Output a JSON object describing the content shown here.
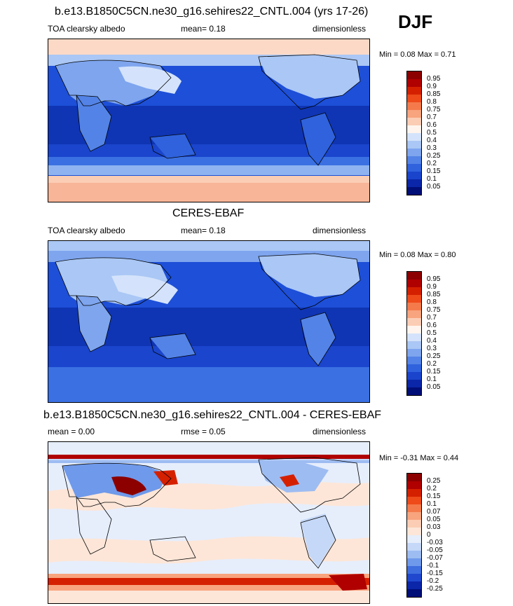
{
  "header": {
    "season": "DJF"
  },
  "panels": [
    {
      "title": "b.e13.B1850C5CN.ne30_g16.sehires22_CNTL.004 (yrs 17-26)",
      "left_label": "TOA clearsky albedo",
      "center_label": "mean=  0.18",
      "right_label": "dimensionless",
      "minmax": "Min =  0.08 Max =  0.71",
      "colorbar": {
        "labels": [
          "0.95",
          "0.9",
          "0.85",
          "0.8",
          "0.75",
          "0.7",
          "0.6",
          "0.5",
          "0.4",
          "0.3",
          "0.25",
          "0.2",
          "0.15",
          "0.1",
          "0.05"
        ],
        "colors": [
          "#8c0000",
          "#b00000",
          "#d52000",
          "#ee4a1a",
          "#f47a4c",
          "#f8a47e",
          "#fbcdb4",
          "#fff5ee",
          "#d4e3fb",
          "#aac7f5",
          "#7ea5ee",
          "#5383e6",
          "#2f62dc",
          "#1a44cc",
          "#0b26a8",
          "#000e78"
        ]
      }
    },
    {
      "title": "CERES-EBAF",
      "left_label": "TOA clearsky albedo",
      "center_label": "mean=  0.18",
      "right_label": "dimensionless",
      "minmax": "Min =  0.08 Max =  0.80",
      "colorbar": {
        "labels": [
          "0.95",
          "0.9",
          "0.85",
          "0.8",
          "0.75",
          "0.7",
          "0.6",
          "0.5",
          "0.4",
          "0.3",
          "0.25",
          "0.2",
          "0.15",
          "0.1",
          "0.05"
        ],
        "colors": [
          "#8c0000",
          "#b00000",
          "#d52000",
          "#ee4a1a",
          "#f47a4c",
          "#f8a47e",
          "#fbcdb4",
          "#fff5ee",
          "#d4e3fb",
          "#aac7f5",
          "#7ea5ee",
          "#5383e6",
          "#2f62dc",
          "#1a44cc",
          "#0b26a8",
          "#000e78"
        ]
      }
    },
    {
      "title": "b.e13.B1850C5CN.ne30_g16.sehires22_CNTL.004 - CERES-EBAF",
      "left_label": "mean =   0.00",
      "center_label": "rmse =  0.05",
      "right_label": "dimensionless",
      "minmax": "Min =  -0.31 Max =  0.44",
      "colorbar": {
        "labels": [
          "0.25",
          "0.2",
          "0.15",
          "0.1",
          "0.07",
          "0.05",
          "0.03",
          "0",
          "-0.03",
          "-0.05",
          "-0.07",
          "-0.1",
          "-0.15",
          "-0.2",
          "-0.25"
        ],
        "colors": [
          "#8c0000",
          "#b00000",
          "#d52000",
          "#ee4a1a",
          "#f47a4c",
          "#f8a47e",
          "#fbcdb4",
          "#fde6d8",
          "#e6eefc",
          "#c5d8f8",
          "#9dbcf2",
          "#6f99ea",
          "#3f6edf",
          "#1f48cf",
          "#0b26a8",
          "#000e78"
        ]
      }
    }
  ]
}
